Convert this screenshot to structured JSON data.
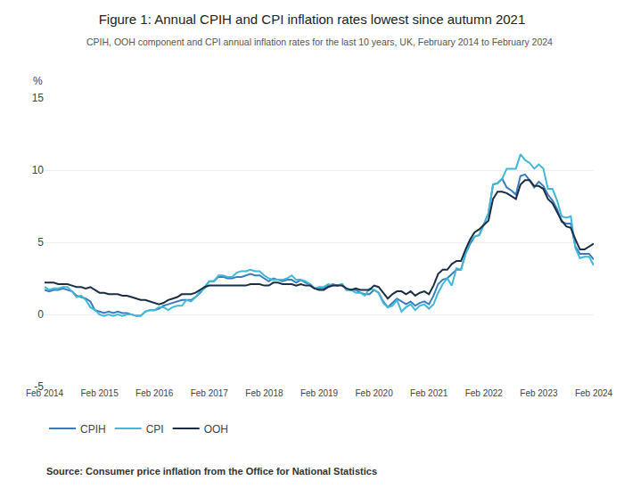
{
  "chart_data": {
    "type": "line",
    "title": "Figure 1: Annual CPIH and CPI inflation rates lowest since autumn 2021",
    "subtitle": "CPIH, OOH component and CPI annual inflation rates for the last 10 years, UK, February 2014 to February 2024",
    "source": "Source: Consumer price inflation from the Office for National Statistics",
    "ylabel": "%",
    "ylim": [
      -5,
      15
    ],
    "yticks": [
      -5,
      0,
      5,
      10,
      15
    ],
    "grid": true,
    "legend": "bottom",
    "categories": [
      "Feb 2014",
      null,
      null,
      null,
      null,
      null,
      null,
      null,
      null,
      null,
      null,
      null,
      "Feb 2015",
      null,
      null,
      null,
      null,
      null,
      null,
      null,
      null,
      null,
      null,
      null,
      "Feb 2016",
      null,
      null,
      null,
      null,
      null,
      null,
      null,
      null,
      null,
      null,
      null,
      "Feb 2017",
      null,
      null,
      null,
      null,
      null,
      null,
      null,
      null,
      null,
      null,
      null,
      "Feb 2018",
      null,
      null,
      null,
      null,
      null,
      null,
      null,
      null,
      null,
      null,
      null,
      "Feb 2019",
      null,
      null,
      null,
      null,
      null,
      null,
      null,
      null,
      null,
      null,
      null,
      "Feb 2020",
      null,
      null,
      null,
      null,
      null,
      null,
      null,
      null,
      null,
      null,
      null,
      "Feb 2021",
      null,
      null,
      null,
      null,
      null,
      null,
      null,
      null,
      null,
      null,
      null,
      "Feb 2022",
      null,
      null,
      null,
      null,
      null,
      null,
      null,
      null,
      null,
      null,
      null,
      "Feb 2023",
      null,
      null,
      null,
      null,
      null,
      null,
      null,
      null,
      null,
      null,
      null,
      "Feb 2024"
    ],
    "series": [
      {
        "name": "CPIH",
        "color": "#3a7dbe",
        "values": [
          1.7,
          1.6,
          1.7,
          1.7,
          1.8,
          1.7,
          1.6,
          1.3,
          1.2,
          1.1,
          0.9,
          0.3,
          0.2,
          0.1,
          0.2,
          0.1,
          0.2,
          0.1,
          0.1,
          0.0,
          -0.1,
          -0.1,
          0.2,
          0.3,
          0.3,
          0.4,
          0.6,
          0.7,
          0.8,
          0.9,
          1.0,
          1.0,
          1.0,
          1.2,
          1.5,
          1.9,
          2.3,
          2.3,
          2.6,
          2.6,
          2.5,
          2.5,
          2.6,
          2.6,
          2.7,
          2.8,
          2.7,
          2.7,
          2.5,
          2.3,
          2.5,
          2.4,
          2.3,
          2.4,
          2.4,
          2.2,
          2.4,
          2.2,
          2.1,
          1.8,
          1.8,
          1.8,
          2.0,
          2.1,
          2.0,
          2.1,
          1.7,
          1.7,
          1.7,
          1.5,
          1.4,
          1.4,
          1.7,
          1.5,
          0.9,
          0.5,
          0.8,
          1.1,
          0.9,
          0.7,
          0.9,
          0.6,
          0.8,
          0.9,
          0.7,
          1.3,
          2.1,
          2.4,
          2.5,
          2.8,
          3.1,
          3.1,
          4.2,
          4.9,
          5.4,
          5.5,
          6.2,
          7.0,
          9.0,
          9.1,
          9.4,
          8.8,
          8.6,
          8.3,
          9.6,
          9.7,
          9.3,
          8.8,
          9.2,
          8.9,
          8.3,
          7.9,
          7.3,
          6.4,
          6.3,
          6.3,
          4.7,
          4.2,
          4.2,
          4.2,
          3.8
        ]
      },
      {
        "name": "CPI",
        "color": "#40b8d8",
        "values": [
          1.9,
          1.7,
          1.8,
          1.8,
          1.9,
          1.9,
          1.6,
          1.2,
          1.3,
          1.0,
          0.5,
          0.3,
          0.0,
          -0.1,
          0.0,
          -0.1,
          0.0,
          -0.1,
          0.0,
          0.0,
          -0.1,
          -0.1,
          0.2,
          0.3,
          0.3,
          0.5,
          0.5,
          0.3,
          0.5,
          0.6,
          0.6,
          1.0,
          0.9,
          1.2,
          1.6,
          1.8,
          2.3,
          2.3,
          2.7,
          2.7,
          2.6,
          2.6,
          2.9,
          3.0,
          3.0,
          3.1,
          3.0,
          3.0,
          2.7,
          2.5,
          2.4,
          2.4,
          2.4,
          2.5,
          2.7,
          2.4,
          2.4,
          2.3,
          2.1,
          1.8,
          1.9,
          1.9,
          2.1,
          2.0,
          2.0,
          2.1,
          1.7,
          1.7,
          1.5,
          1.5,
          1.3,
          1.8,
          1.7,
          1.5,
          0.8,
          0.5,
          0.6,
          1.0,
          0.2,
          0.5,
          0.7,
          0.3,
          0.6,
          0.7,
          0.4,
          0.7,
          1.5,
          2.1,
          2.5,
          2.0,
          3.2,
          3.1,
          4.2,
          5.1,
          5.4,
          5.5,
          6.2,
          7.0,
          9.0,
          9.1,
          9.4,
          10.1,
          10.1,
          10.1,
          11.1,
          10.7,
          10.5,
          10.1,
          10.4,
          10.1,
          8.7,
          8.7,
          7.9,
          6.8,
          6.7,
          6.8,
          4.6,
          3.9,
          4.0,
          4.0,
          3.4
        ]
      },
      {
        "name": "OOH",
        "color": "#1a2e44",
        "values": [
          2.2,
          2.2,
          2.2,
          2.1,
          2.1,
          2.1,
          2.0,
          1.9,
          1.9,
          1.8,
          1.9,
          1.7,
          1.5,
          1.5,
          1.4,
          1.4,
          1.4,
          1.3,
          1.3,
          1.2,
          1.1,
          1.0,
          1.0,
          0.9,
          0.8,
          0.7,
          0.8,
          1.0,
          1.1,
          1.2,
          1.4,
          1.4,
          1.4,
          1.5,
          1.7,
          1.9,
          2.0,
          2.0,
          2.0,
          2.0,
          2.0,
          2.0,
          2.0,
          2.0,
          2.0,
          2.1,
          2.1,
          2.1,
          2.0,
          2.0,
          2.2,
          2.2,
          2.1,
          2.1,
          2.1,
          2.0,
          2.1,
          2.0,
          2.0,
          1.8,
          1.7,
          1.7,
          1.9,
          2.0,
          2.0,
          2.0,
          1.8,
          1.7,
          1.8,
          1.7,
          1.7,
          1.7,
          2.0,
          1.9,
          1.5,
          1.1,
          1.4,
          1.6,
          1.6,
          1.4,
          1.6,
          1.3,
          1.5,
          1.6,
          1.4,
          2.0,
          2.8,
          3.1,
          3.1,
          3.5,
          3.7,
          3.7,
          4.5,
          5.2,
          5.7,
          5.9,
          6.2,
          6.5,
          8.0,
          8.5,
          8.5,
          8.4,
          8.2,
          8.0,
          9.0,
          9.3,
          9.3,
          8.9,
          8.9,
          8.7,
          8.0,
          7.7,
          7.1,
          6.5,
          6.1,
          6.0,
          5.2,
          4.5,
          4.5,
          4.7,
          4.9
        ]
      }
    ]
  }
}
